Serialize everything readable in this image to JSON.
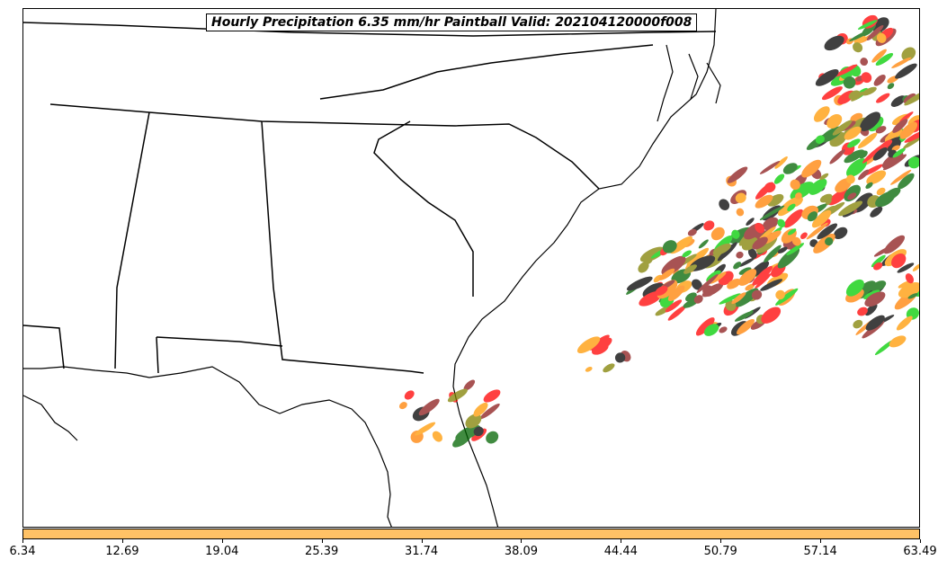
{
  "map": {
    "title": "Hourly Precipitation 6.35 mm/hr Paintball Valid: 202104120000f008",
    "region": "Southeastern United States",
    "member_colors": [
      "#ff0000",
      "#00cc00",
      "#ff8000",
      "#808000",
      "#8b1a1a",
      "#006400",
      "#000000",
      "#ff9900"
    ]
  },
  "colorbar": {
    "color": "#ffc266",
    "ticks": [
      "6.34",
      "12.69",
      "19.04",
      "25.39",
      "31.74",
      "38.09",
      "44.44",
      "50.79",
      "57.14",
      "63.49"
    ]
  }
}
